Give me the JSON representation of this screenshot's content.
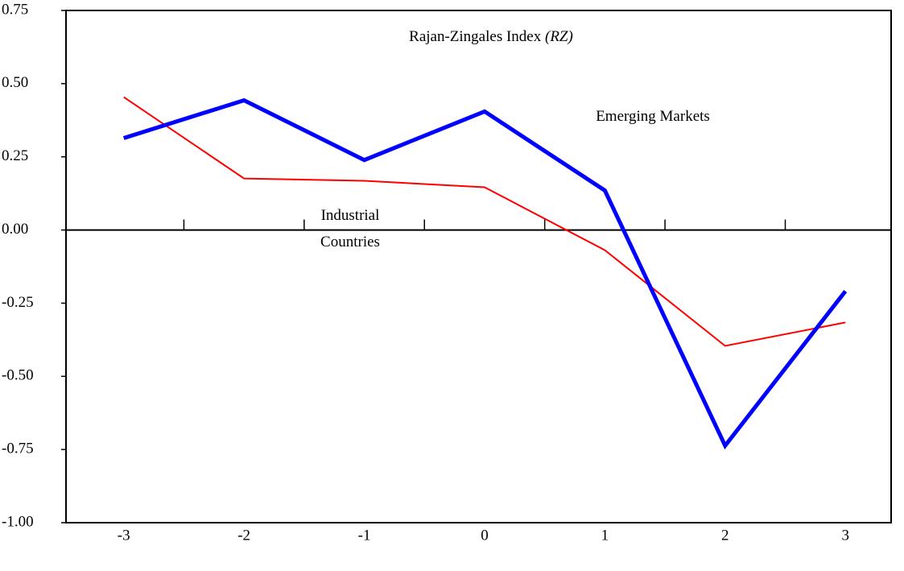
{
  "chart_data": {
    "type": "line",
    "title": "Rajan-Zingales Index",
    "title_symbol": "(RZ)",
    "x": [
      -3,
      -2,
      -1,
      0,
      1,
      2,
      3
    ],
    "xlim": [
      -3.48,
      3.38
    ],
    "xticks": [
      -3,
      -2,
      -1,
      0,
      1,
      2,
      3
    ],
    "ylim": [
      -1,
      0.75
    ],
    "yticks": [
      0.75,
      {
        "value": 0.5,
        "label": "0.50"
      },
      0.25,
      {
        "value": 0,
        "label": "0.00"
      },
      -0.25,
      {
        "value": -0.5,
        "label": "-0.50"
      },
      -0.75,
      {
        "value": -1,
        "label": "-1.00"
      }
    ],
    "series": [
      {
        "name": "Emerging Markets",
        "color": "#0000ff",
        "values": [
          0.314,
          0.443,
          0.239,
          0.405,
          0.135,
          -0.737,
          -0.209
        ]
      },
      {
        "name": "Industrial Countries",
        "color": "#ff0000",
        "values": [
          0.454,
          0.176,
          0.168,
          0.146,
          -0.069,
          -0.396,
          -0.316
        ]
      }
    ]
  }
}
